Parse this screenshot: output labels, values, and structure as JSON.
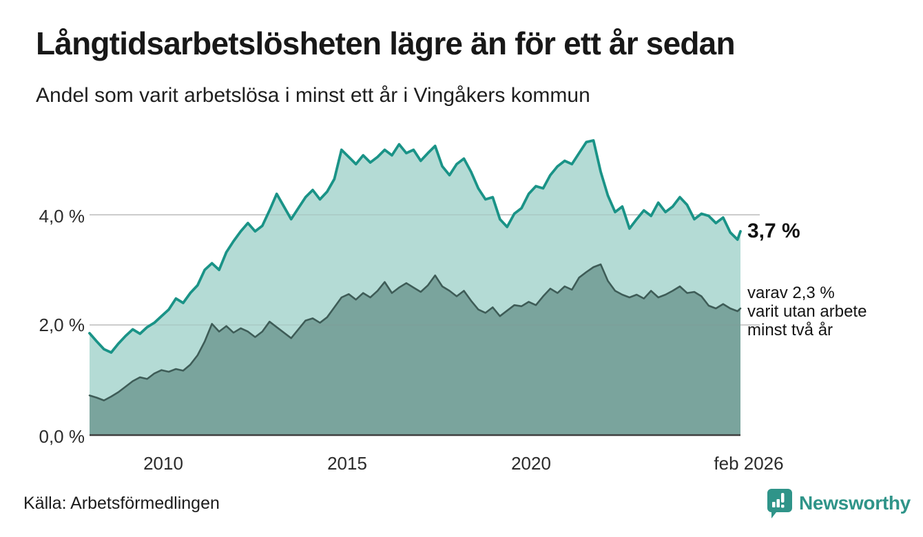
{
  "header": {
    "title": "Långtidsarbetslösheten lägre än för ett år sedan",
    "subtitle": "Andel som varit arbetslösa i minst ett år i Vingåkers kommun"
  },
  "chart_data": {
    "type": "area",
    "title": "Långtidsarbetslösheten lägre än för ett år sedan",
    "subtitle": "Andel som varit arbetslösa i minst ett år i Vingåkers kommun",
    "unit": "%",
    "grid": "horizontal",
    "x_range": [
      2008.0,
      2026.083
    ],
    "ylim": [
      0,
      5.5
    ],
    "y_ticks": [
      "4,0 %",
      "2,0 %",
      "0,0 %"
    ],
    "y_tick_values": [
      4.0,
      2.0,
      0.0
    ],
    "x_ticks": [
      "2010",
      "2015",
      "2020",
      "feb 2026"
    ],
    "x_tick_values": [
      2010,
      2015,
      2020,
      2026.083
    ],
    "colors": {
      "line1": "#1a9387",
      "fill1": "#b4dbd5",
      "line2": "#3e5c57",
      "fill2": "#7aa49d",
      "gridline": "#d9d9d9",
      "axis": "#3f3f3f",
      "accent": "#2f9489"
    },
    "x": [
      2008,
      2008.2,
      2008.4,
      2008.6,
      2008.8,
      2009,
      2009.2,
      2009.4,
      2009.6,
      2009.8,
      2010,
      2010.2,
      2010.4,
      2010.6,
      2010.8,
      2011,
      2011.2,
      2011.4,
      2011.6,
      2011.8,
      2012,
      2012.2,
      2012.4,
      2012.6,
      2012.8,
      2013,
      2013.2,
      2013.4,
      2013.6,
      2013.8,
      2014,
      2014.2,
      2014.4,
      2014.6,
      2014.8,
      2015,
      2015.2,
      2015.4,
      2015.6,
      2015.8,
      2016,
      2016.2,
      2016.4,
      2016.6,
      2016.8,
      2017,
      2017.2,
      2017.4,
      2017.6,
      2017.8,
      2018,
      2018.2,
      2018.4,
      2018.6,
      2018.8,
      2019,
      2019.2,
      2019.4,
      2019.6,
      2019.8,
      2020,
      2020.2,
      2020.4,
      2020.6,
      2020.8,
      2021,
      2021.2,
      2021.4,
      2021.6,
      2021.8,
      2022,
      2022.2,
      2022.4,
      2022.6,
      2022.8,
      2023,
      2023.2,
      2023.4,
      2023.6,
      2023.8,
      2024,
      2024.2,
      2024.4,
      2024.6,
      2024.8,
      2025,
      2025.2,
      2025.4,
      2025.6,
      2025.8,
      2026,
      2026.083
    ],
    "series": [
      {
        "name": "Arbetslösa minst ett år",
        "end_label": "3,7 %",
        "end_value": 3.7,
        "values": [
          1.85,
          1.7,
          1.56,
          1.5,
          1.66,
          1.8,
          1.92,
          1.84,
          1.96,
          2.04,
          2.16,
          2.28,
          2.48,
          2.4,
          2.58,
          2.72,
          3.0,
          3.12,
          3.0,
          3.32,
          3.52,
          3.7,
          3.85,
          3.7,
          3.8,
          4.08,
          4.38,
          4.15,
          3.92,
          4.12,
          4.32,
          4.45,
          4.28,
          4.42,
          4.65,
          5.18,
          5.05,
          4.92,
          5.08,
          4.95,
          5.05,
          5.18,
          5.08,
          5.28,
          5.12,
          5.18,
          4.98,
          5.12,
          5.25,
          4.88,
          4.72,
          4.92,
          5.02,
          4.78,
          4.48,
          4.28,
          4.32,
          3.92,
          3.78,
          4.02,
          4.12,
          4.38,
          4.52,
          4.48,
          4.72,
          4.88,
          4.98,
          4.92,
          5.12,
          5.32,
          5.35,
          4.78,
          4.35,
          4.05,
          4.15,
          3.75,
          3.92,
          4.08,
          3.98,
          4.22,
          4.05,
          4.15,
          4.32,
          4.18,
          3.92,
          4.02,
          3.98,
          3.85,
          3.95,
          3.68,
          3.55,
          3.7
        ]
      },
      {
        "name": "varav utan arbete minst två år",
        "end_label": "varav 2,3 % varit utan arbete minst två år",
        "end_value": 2.3,
        "values": [
          0.72,
          0.68,
          0.63,
          0.7,
          0.78,
          0.88,
          0.98,
          1.05,
          1.02,
          1.12,
          1.18,
          1.15,
          1.2,
          1.17,
          1.28,
          1.45,
          1.7,
          2.02,
          1.88,
          1.98,
          1.86,
          1.94,
          1.88,
          1.78,
          1.88,
          2.06,
          1.96,
          1.86,
          1.76,
          1.92,
          2.08,
          2.12,
          2.04,
          2.14,
          2.32,
          2.5,
          2.56,
          2.46,
          2.58,
          2.5,
          2.62,
          2.78,
          2.58,
          2.68,
          2.76,
          2.68,
          2.6,
          2.72,
          2.9,
          2.7,
          2.62,
          2.52,
          2.62,
          2.44,
          2.28,
          2.22,
          2.32,
          2.16,
          2.26,
          2.36,
          2.34,
          2.42,
          2.36,
          2.52,
          2.66,
          2.58,
          2.7,
          2.64,
          2.86,
          2.96,
          3.05,
          3.1,
          2.8,
          2.62,
          2.55,
          2.5,
          2.55,
          2.48,
          2.62,
          2.5,
          2.55,
          2.62,
          2.7,
          2.58,
          2.6,
          2.52,
          2.35,
          2.3,
          2.38,
          2.3,
          2.25,
          2.3
        ]
      }
    ]
  },
  "annotations": {
    "series1_value": "3,7 %",
    "series2_lines": [
      "varav 2,3 %",
      "varit utan arbete",
      "minst två år"
    ]
  },
  "footer": {
    "source": "Källa: Arbetsförmedlingen",
    "brand": "Newsworthy"
  }
}
